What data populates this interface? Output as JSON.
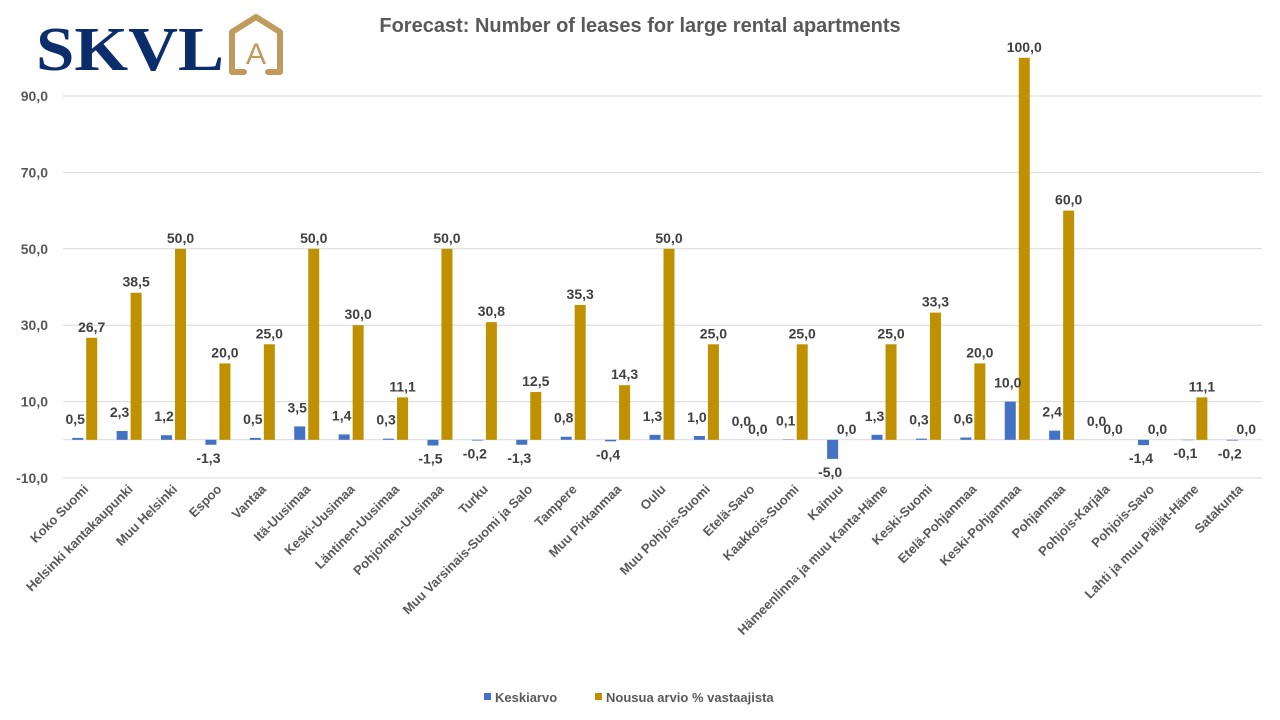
{
  "logo": {
    "text": "SKVL",
    "emblem_letter": "A",
    "colors": {
      "text": "#0B2D6B",
      "emblem": "#C09A5B"
    }
  },
  "chart_data": {
    "type": "bar",
    "title": "Forecast: Number of leases for large rental apartments",
    "xlabel": "",
    "ylabel": "",
    "ylim": [
      -10,
      100
    ],
    "yticks": [
      -10,
      10,
      30,
      50,
      70,
      90
    ],
    "ytick_labels": [
      "-10,0",
      "10,0",
      "30,0",
      "50,0",
      "70,0",
      "90,0"
    ],
    "grid": true,
    "legend": "bottom",
    "categories": [
      "Koko Suomi",
      "Helsinki kantakaupunki",
      "Muu Helsinki",
      "Espoo",
      "Vantaa",
      "Itä-Uusimaa",
      "Keski-Uusimaa",
      "Läntinen-Uusimaa",
      "Pohjoinen-Uusimaa",
      "Turku",
      "Muu Varsinais-Suomi ja Salo",
      "Tampere",
      "Muu Pirkanmaa",
      "Oulu",
      "Muu Pohjois-Suomi",
      "Etelä-Savo",
      "Kaakkois-Suomi",
      "Kainuu",
      "Hämeenlinna ja muu Kanta-Häme",
      "Keski-Suomi",
      "Etelä-Pohjanmaa",
      "Keski-Pohjanmaa",
      "Pohjanmaa",
      "Pohjois-Karjala",
      "Pohjois-Savo",
      "Lahti ja muu Päijät-Häme",
      "Satakunta"
    ],
    "series": [
      {
        "name": "Keskiarvo",
        "color": "#4472C4",
        "values": [
          0.5,
          2.3,
          1.2,
          -1.3,
          0.5,
          3.5,
          1.4,
          0.3,
          -1.5,
          -0.2,
          -1.3,
          0.8,
          -0.4,
          1.3,
          1.0,
          0.0,
          0.1,
          -5.0,
          1.3,
          0.3,
          0.6,
          10.0,
          2.4,
          0.0,
          -1.4,
          -0.1,
          -0.2
        ]
      },
      {
        "name": "Nousua arvio % vastaajista",
        "color": "#BF9000",
        "values": [
          26.7,
          38.5,
          50.0,
          20.0,
          25.0,
          50.0,
          30.0,
          11.1,
          50.0,
          30.8,
          12.5,
          35.3,
          14.3,
          50.0,
          25.0,
          0.0,
          25.0,
          0.0,
          25.0,
          33.3,
          20.0,
          100.0,
          60.0,
          0.0,
          0.0,
          11.1,
          0.0
        ]
      }
    ]
  }
}
